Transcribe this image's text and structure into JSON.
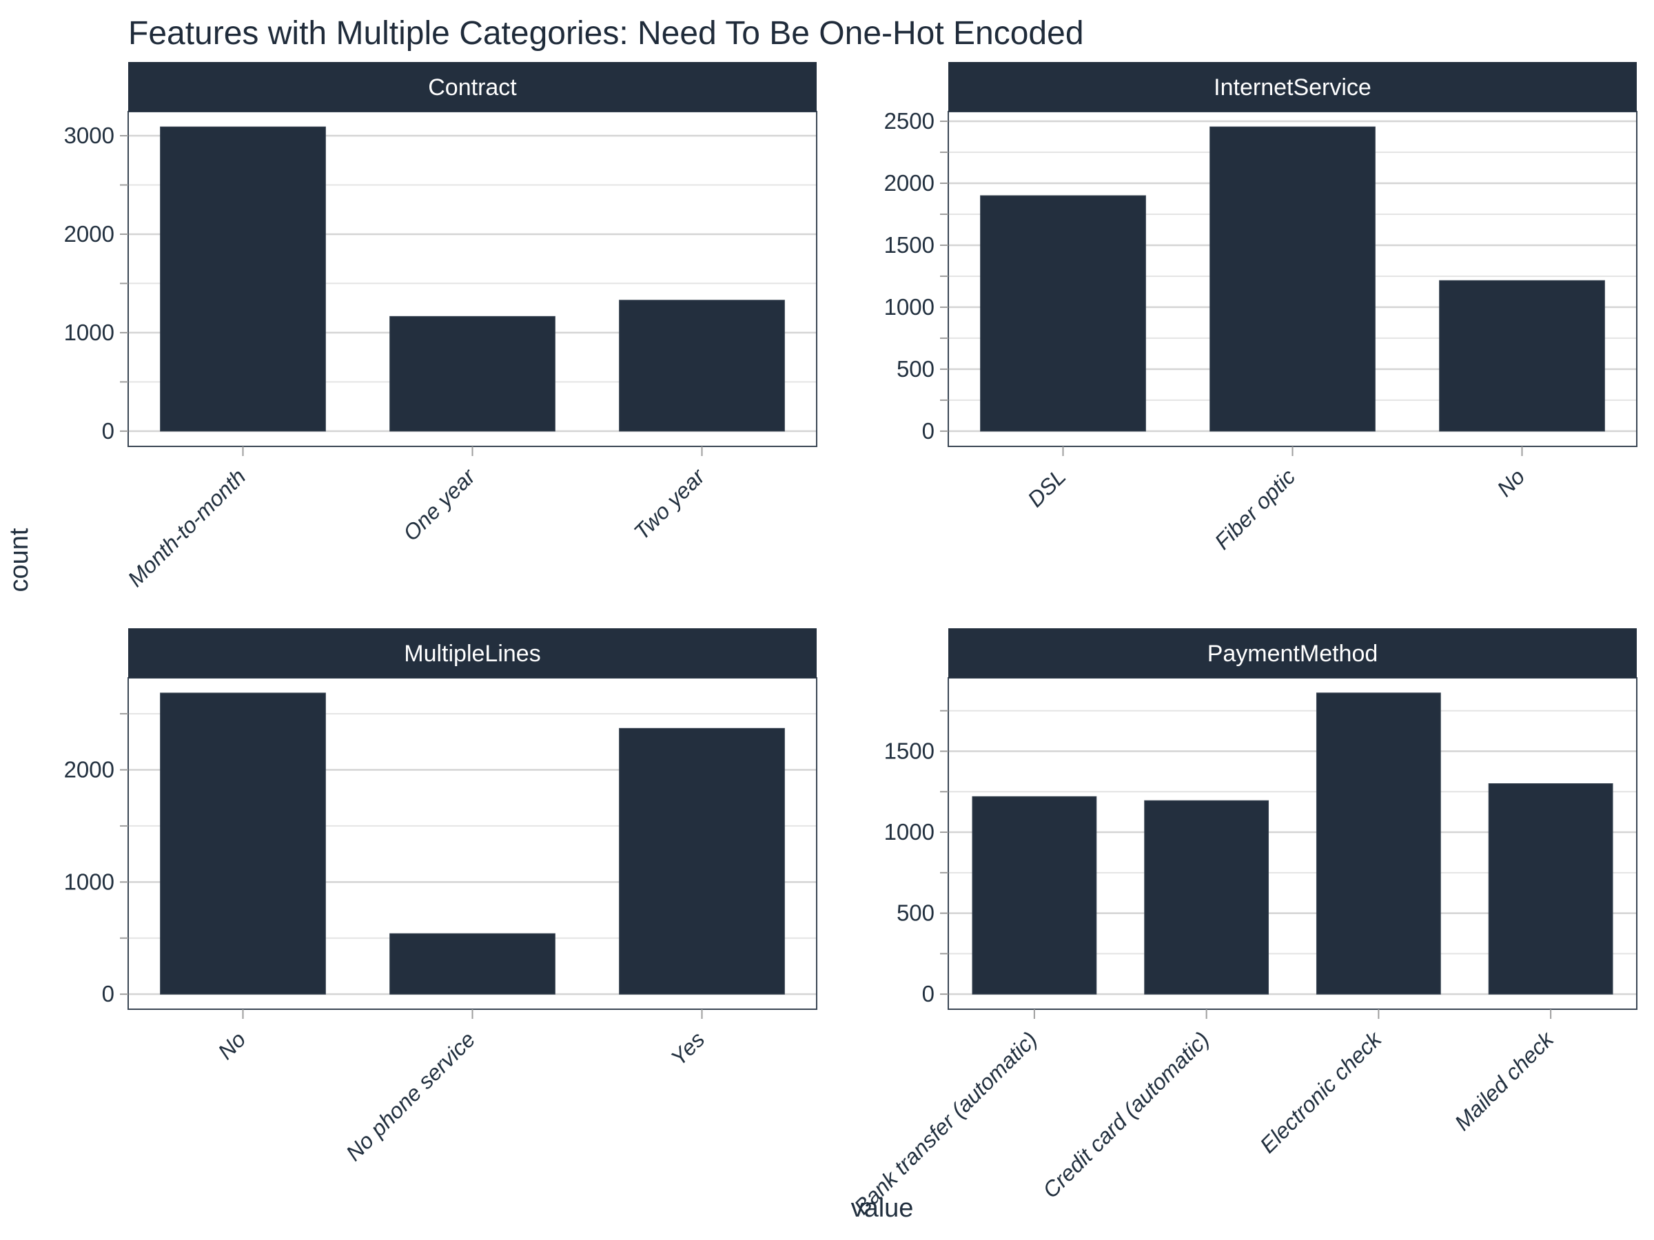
{
  "title": "Features with Multiple Categories: Need To Be One-Hot Encoded",
  "axes": {
    "x_title": "value",
    "y_title": "count"
  },
  "colors": {
    "bar": "#232F3E",
    "strip_bg": "#232F3E",
    "strip_text": "#FFFFFF",
    "title_text": "#1F2B3A",
    "axis_text": "#22303F",
    "grid_major": "#D4D4D4",
    "grid_minor": "#E4E4E4",
    "panel_border": "#3A4654",
    "tick": "#9E9E9E",
    "background": "#FFFFFF"
  },
  "chart_data": [
    {
      "type": "bar",
      "title": "Contract",
      "categories": [
        "Month-to-month",
        "One year",
        "Two year"
      ],
      "values": [
        3090,
        1165,
        1330
      ],
      "yticks": [
        0,
        1000,
        2000,
        3000
      ],
      "yminor": [
        500,
        1500,
        2500
      ],
      "ylim": [
        -155,
        3245
      ],
      "xlabel_angle": 45,
      "grid": "on",
      "legend": "none"
    },
    {
      "type": "bar",
      "title": "InternetService",
      "categories": [
        "DSL",
        "Fiber optic",
        "No"
      ],
      "values": [
        1900,
        2455,
        1215
      ],
      "yticks": [
        0,
        500,
        1000,
        1500,
        2000,
        2500
      ],
      "yminor": [
        250,
        750,
        1250,
        1750,
        2250
      ],
      "ylim": [
        -123,
        2578
      ],
      "xlabel_angle": 45,
      "grid": "on",
      "legend": "none"
    },
    {
      "type": "bar",
      "title": "MultipleLines",
      "categories": [
        "No",
        "No phone service",
        "Yes"
      ],
      "values": [
        2685,
        540,
        2370
      ],
      "yticks": [
        0,
        1000,
        2000
      ],
      "yminor": [
        500,
        1500,
        2500
      ],
      "ylim": [
        -134,
        2820
      ],
      "xlabel_angle": 45,
      "grid": "on",
      "legend": "none"
    },
    {
      "type": "bar",
      "title": "PaymentMethod",
      "categories": [
        "Bank transfer (automatic)",
        "Credit card (automatic)",
        "Electronic check",
        "Mailed check"
      ],
      "values": [
        1220,
        1195,
        1860,
        1300
      ],
      "yticks": [
        0,
        500,
        1000,
        1500
      ],
      "yminor": [
        250,
        750,
        1250,
        1750
      ],
      "ylim": [
        -93,
        1953
      ],
      "xlabel_angle": 45,
      "grid": "on",
      "legend": "none"
    }
  ]
}
